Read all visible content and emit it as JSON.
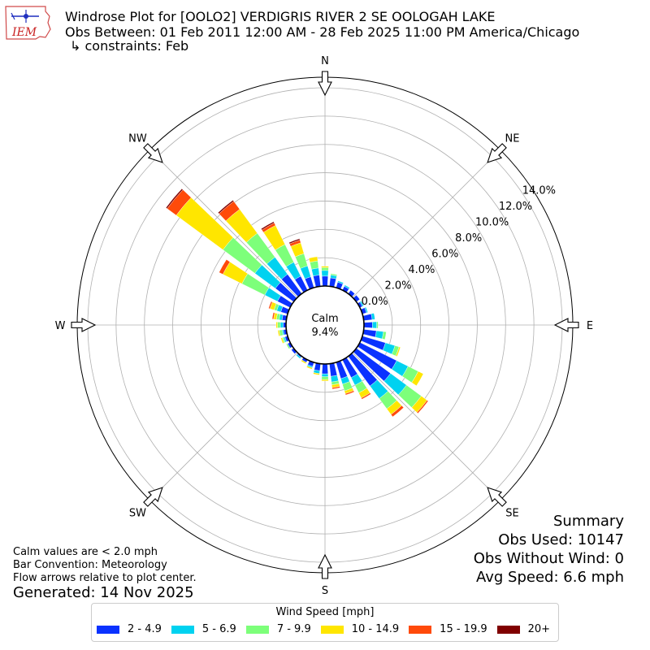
{
  "title": {
    "line1": "Windrose Plot for [OOLO2] VERDIGRIS RIVER 2 SE OOLOGAH LAKE",
    "line2": "Obs Between: 01 Feb 2011 12:00 AM - 28 Feb 2025 11:00 PM America/Chicago",
    "line3": "↳ constraints: Feb"
  },
  "logo": {
    "text": "IEM",
    "name": "iem-logo"
  },
  "notes": {
    "calm_note": "Calm values are < 2.0 mph",
    "bar_convention": "Bar Convention: Meteorology",
    "flow_note": "Flow arrows relative to plot center.",
    "generated": "Generated: 14 Nov 2025"
  },
  "summary": {
    "heading": "Summary",
    "obs_used": "Obs Used: 10147",
    "obs_without_wind": "Obs Without Wind: 0",
    "avg_speed": "Avg Speed: 6.6 mph"
  },
  "chart_data": {
    "type": "windrose",
    "calm_label": "Calm",
    "calm_value": "9.4%",
    "direction_labels": [
      "N",
      "NE",
      "E",
      "SE",
      "S",
      "SW",
      "W",
      "NW"
    ],
    "radial_ticks": [
      "0.0%",
      "2.0%",
      "4.0%",
      "6.0%",
      "8.0%",
      "10.0%",
      "12.0%",
      "14.0%"
    ],
    "radial_range": [
      0,
      14.0
    ],
    "calm_percent": 9.4,
    "grid": true,
    "legend_title": "Wind Speed [mph]",
    "legend_position": "bottom-center",
    "bins": [
      {
        "label": "2 - 4.9",
        "color": "#0a32ff"
      },
      {
        "label": "5 - 6.9",
        "color": "#00d2f0"
      },
      {
        "label": "7 - 9.9",
        "color": "#7dff7a"
      },
      {
        "label": "10 - 14.9",
        "color": "#ffe600"
      },
      {
        "label": "15 - 19.9",
        "color": "#ff4a0a"
      },
      {
        "label": "20+",
        "color": "#800000"
      }
    ],
    "directions_deg": [
      0,
      10,
      20,
      30,
      40,
      50,
      60,
      70,
      80,
      90,
      100,
      110,
      120,
      130,
      140,
      150,
      160,
      170,
      180,
      190,
      200,
      210,
      220,
      230,
      240,
      250,
      260,
      270,
      280,
      290,
      300,
      310,
      320,
      330,
      340,
      350
    ],
    "cumulative_percent": [
      [
        0.7,
        1.1,
        1.3,
        1.4,
        1.4,
        1.4
      ],
      [
        0.6,
        0.8,
        0.9,
        0.9,
        0.9,
        0.9
      ],
      [
        0.4,
        0.5,
        0.5,
        0.5,
        0.5,
        0.5
      ],
      [
        0.3,
        0.4,
        0.4,
        0.4,
        0.4,
        0.4
      ],
      [
        0.3,
        0.3,
        0.3,
        0.3,
        0.3,
        0.3
      ],
      [
        0.3,
        0.3,
        0.3,
        0.3,
        0.3,
        0.3
      ],
      [
        0.2,
        0.3,
        0.3,
        0.3,
        0.3,
        0.3
      ],
      [
        0.3,
        0.4,
        0.4,
        0.4,
        0.4,
        0.4
      ],
      [
        0.6,
        0.8,
        0.8,
        0.8,
        0.8,
        0.8
      ],
      [
        0.6,
        0.9,
        1.0,
        1.0,
        1.0,
        1.0
      ],
      [
        0.9,
        1.4,
        1.6,
        1.6,
        1.6,
        1.6
      ],
      [
        1.7,
        2.4,
        2.7,
        2.8,
        2.8,
        2.8
      ],
      [
        2.9,
        3.8,
        4.6,
        5.0,
        5.0,
        5.0
      ],
      [
        3.0,
        4.4,
        5.7,
        6.2,
        6.3,
        6.3
      ],
      [
        2.6,
        3.7,
        4.6,
        5.1,
        5.3,
        5.3
      ],
      [
        1.4,
        2.0,
        2.6,
        3.0,
        3.1,
        3.1
      ],
      [
        1.2,
        1.6,
        2.1,
        2.3,
        2.4,
        2.4
      ],
      [
        0.9,
        1.3,
        1.5,
        1.7,
        1.8,
        1.8
      ],
      [
        0.7,
        0.9,
        1.1,
        1.2,
        1.2,
        1.2
      ],
      [
        0.5,
        0.7,
        0.7,
        0.8,
        0.8,
        0.8
      ],
      [
        0.3,
        0.4,
        0.4,
        0.5,
        0.5,
        0.5
      ],
      [
        0.2,
        0.2,
        0.2,
        0.3,
        0.3,
        0.3
      ],
      [
        0.1,
        0.2,
        0.2,
        0.2,
        0.2,
        0.2
      ],
      [
        0.2,
        0.2,
        0.2,
        0.2,
        0.2,
        0.2
      ],
      [
        0.2,
        0.2,
        0.3,
        0.3,
        0.3,
        0.3
      ],
      [
        0.2,
        0.3,
        0.4,
        0.5,
        0.5,
        0.5
      ],
      [
        0.2,
        0.3,
        0.5,
        0.6,
        0.6,
        0.6
      ],
      [
        0.2,
        0.4,
        0.6,
        0.7,
        0.7,
        0.7
      ],
      [
        0.3,
        0.5,
        0.7,
        0.9,
        1.0,
        1.0
      ],
      [
        0.5,
        0.8,
        1.0,
        1.3,
        1.4,
        1.4
      ],
      [
        1.0,
        2.0,
        3.8,
        5.3,
        5.6,
        5.6
      ],
      [
        1.6,
        3.4,
        6.2,
        10.3,
        11.1,
        11.2
      ],
      [
        1.7,
        3.2,
        5.3,
        7.4,
        8.1,
        8.2
      ],
      [
        1.1,
        2.2,
        3.6,
        5.1,
        5.3,
        5.4
      ],
      [
        0.8,
        1.6,
        2.5,
        3.3,
        3.5,
        3.6
      ],
      [
        0.8,
        1.3,
        1.8,
        2.1,
        2.1,
        2.1
      ]
    ]
  }
}
